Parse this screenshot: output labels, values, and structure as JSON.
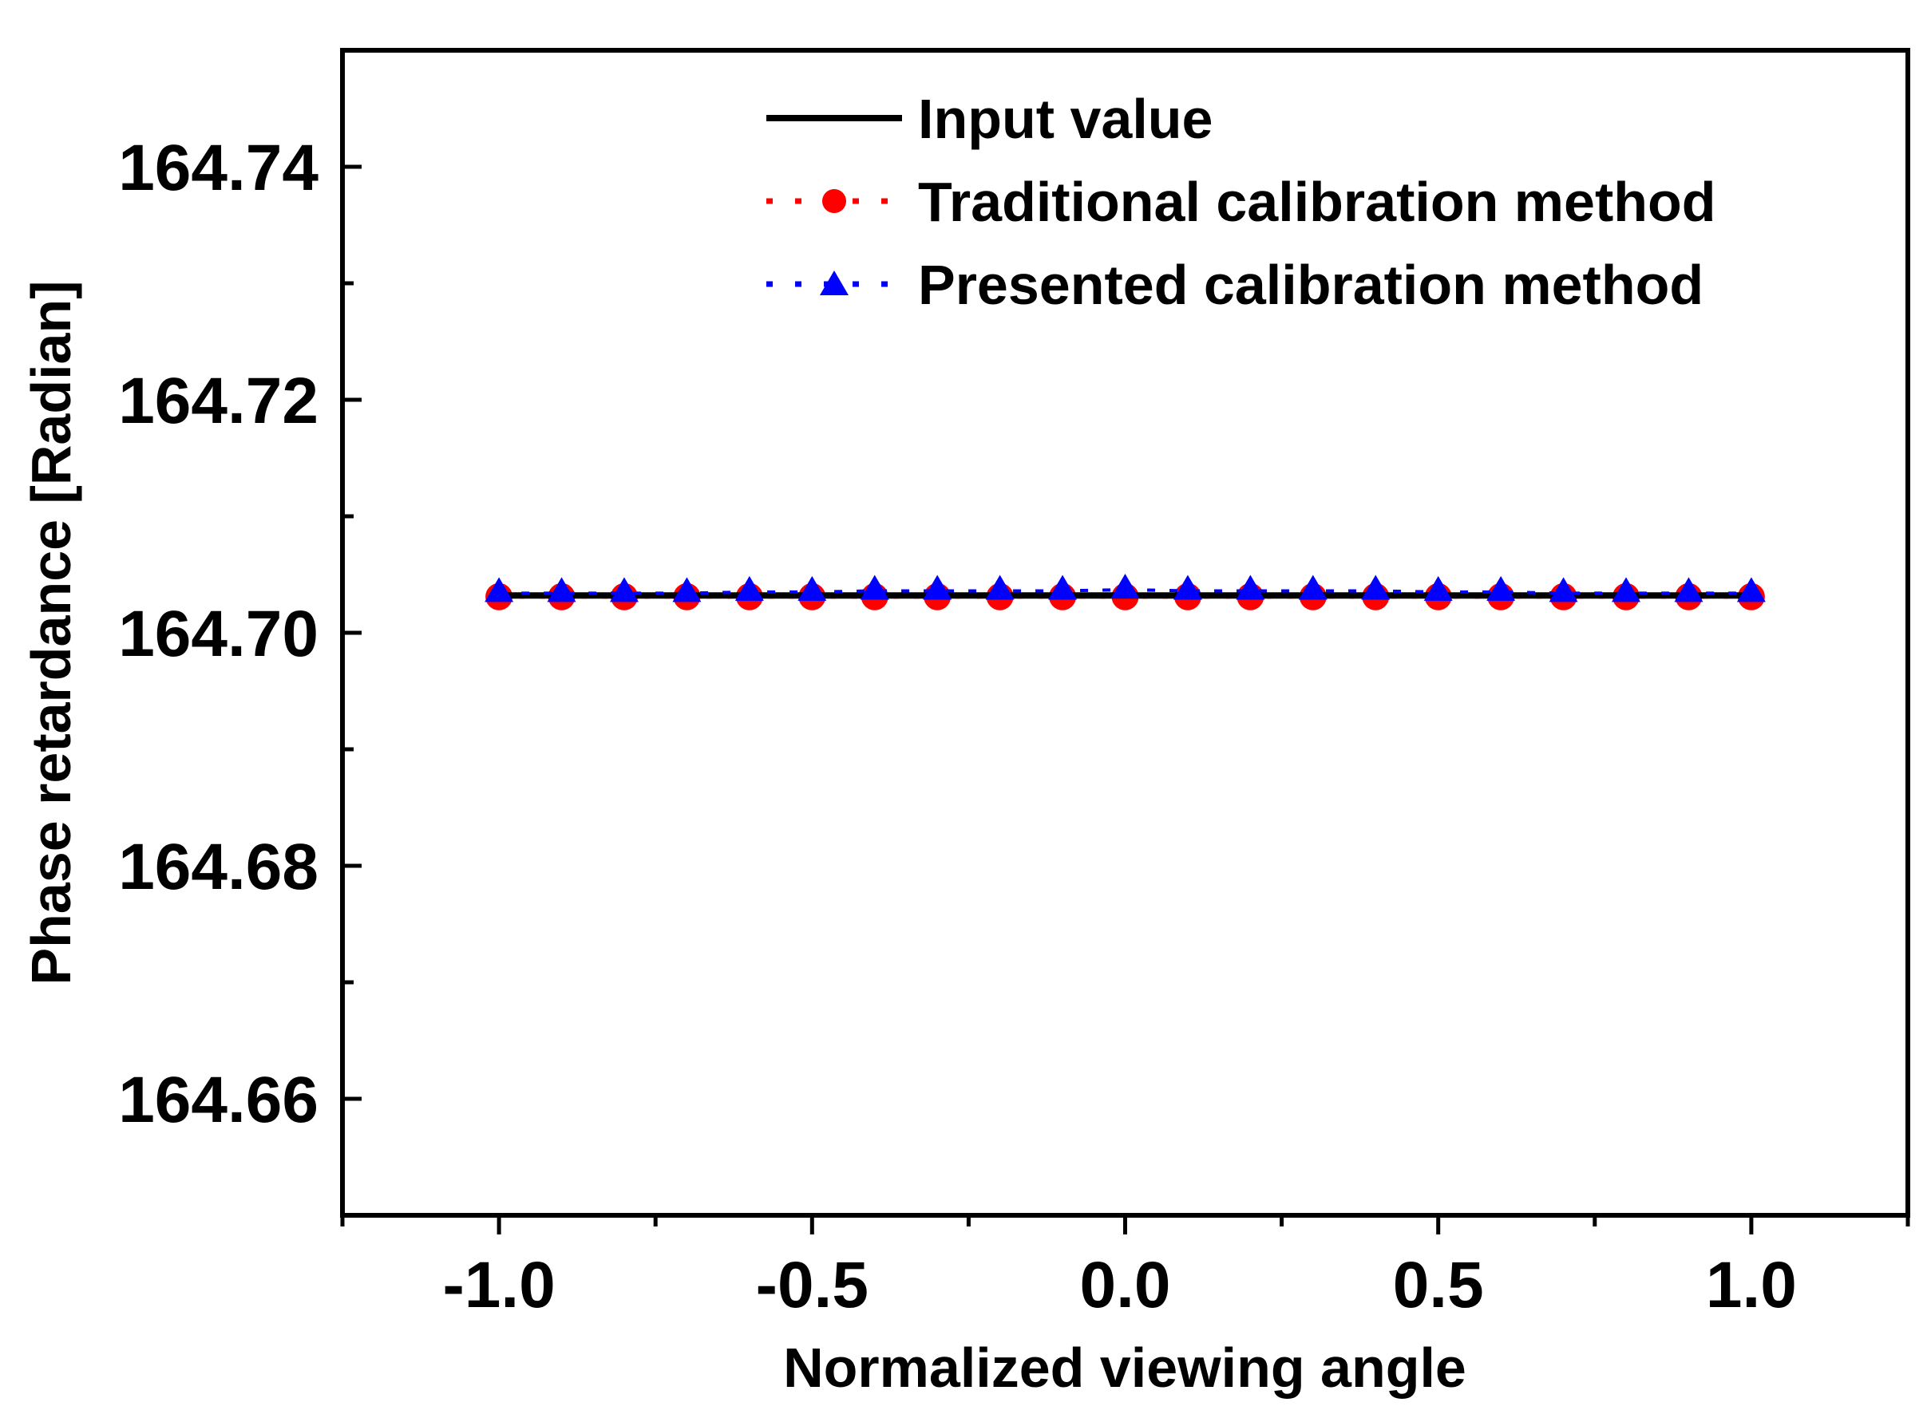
{
  "chart_data": {
    "type": "line",
    "title": "",
    "xlabel": "Normalized viewing angle",
    "ylabel": "Phase retardance [Radian]",
    "xlim": [
      -1.25,
      1.25
    ],
    "ylim": [
      164.65,
      164.75
    ],
    "xticks": [
      -1.0,
      -0.5,
      0.0,
      0.5,
      1.0
    ],
    "xtick_labels": [
      "-1.0",
      "-0.5",
      "0.0",
      "0.5",
      "1.0"
    ],
    "yticks": [
      164.66,
      164.68,
      164.7,
      164.72,
      164.74
    ],
    "ytick_labels": [
      "164.66",
      "164.68",
      "164.70",
      "164.72",
      "164.74"
    ],
    "x": [
      -1.0,
      -0.9,
      -0.8,
      -0.7,
      -0.6,
      -0.5,
      -0.4,
      -0.3,
      -0.2,
      -0.1,
      0.0,
      0.1,
      0.2,
      0.3,
      0.4,
      0.5,
      0.6,
      0.7,
      0.8,
      0.9,
      1.0
    ],
    "series": [
      {
        "name": "Input value",
        "color": "#000000",
        "marker": "none",
        "values": [
          164.7032,
          164.7032,
          164.7032,
          164.7032,
          164.7032,
          164.7032,
          164.7032,
          164.7032,
          164.7032,
          164.7032,
          164.7032,
          164.7032,
          164.7032,
          164.7032,
          164.7032,
          164.7032,
          164.7032,
          164.7032,
          164.7032,
          164.7032,
          164.7032
        ]
      },
      {
        "name": "Traditional calibration method",
        "color": "#ff0000",
        "marker": "circle",
        "values": [
          164.7031,
          164.7031,
          164.7031,
          164.7031,
          164.7031,
          164.7031,
          164.7031,
          164.7031,
          164.7031,
          164.7031,
          164.7031,
          164.7031,
          164.7031,
          164.7031,
          164.7031,
          164.7031,
          164.7031,
          164.7031,
          164.7031,
          164.7031,
          164.7031
        ]
      },
      {
        "name": "Presented calibration method",
        "color": "#0000ff",
        "marker": "triangle",
        "values": [
          164.7034,
          164.7034,
          164.7034,
          164.7034,
          164.7035,
          164.7035,
          164.7036,
          164.7036,
          164.7036,
          164.7036,
          164.7037,
          164.7036,
          164.7036,
          164.7036,
          164.7036,
          164.7035,
          164.7035,
          164.7034,
          164.7034,
          164.7034,
          164.7034
        ]
      }
    ],
    "legend_position": "top-right"
  }
}
